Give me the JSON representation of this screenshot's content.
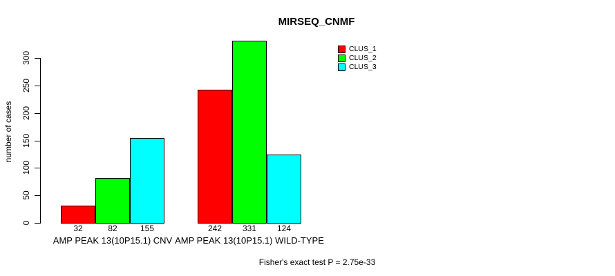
{
  "chart_data": {
    "type": "bar",
    "title": "MIRSEQ_CNMF",
    "xlabel": "",
    "ylabel": "number of cases",
    "categories": [
      "AMP PEAK 13(10P15.1) CNV",
      "AMP PEAK 13(10P15.1) WILD-TYPE"
    ],
    "series": [
      {
        "name": "CLUS_1",
        "color": "#ff0000",
        "values": [
          32,
          242
        ]
      },
      {
        "name": "CLUS_2",
        "color": "#00ff00",
        "values": [
          82,
          331
        ]
      },
      {
        "name": "CLUS_3",
        "color": "#00ffff",
        "values": [
          155,
          124
        ]
      }
    ],
    "yticks": [
      0,
      50,
      100,
      150,
      200,
      250,
      300
    ],
    "ylim": [
      0,
      331
    ],
    "bar_value_labels": [
      [
        32,
        82,
        155
      ],
      [
        242,
        331,
        124
      ]
    ],
    "grid": false,
    "legend_position": "top-right",
    "background": "#ffffff",
    "axis_color": "#000000"
  },
  "footer": {
    "note": "Fisher's exact test P = 2.75e-33"
  }
}
